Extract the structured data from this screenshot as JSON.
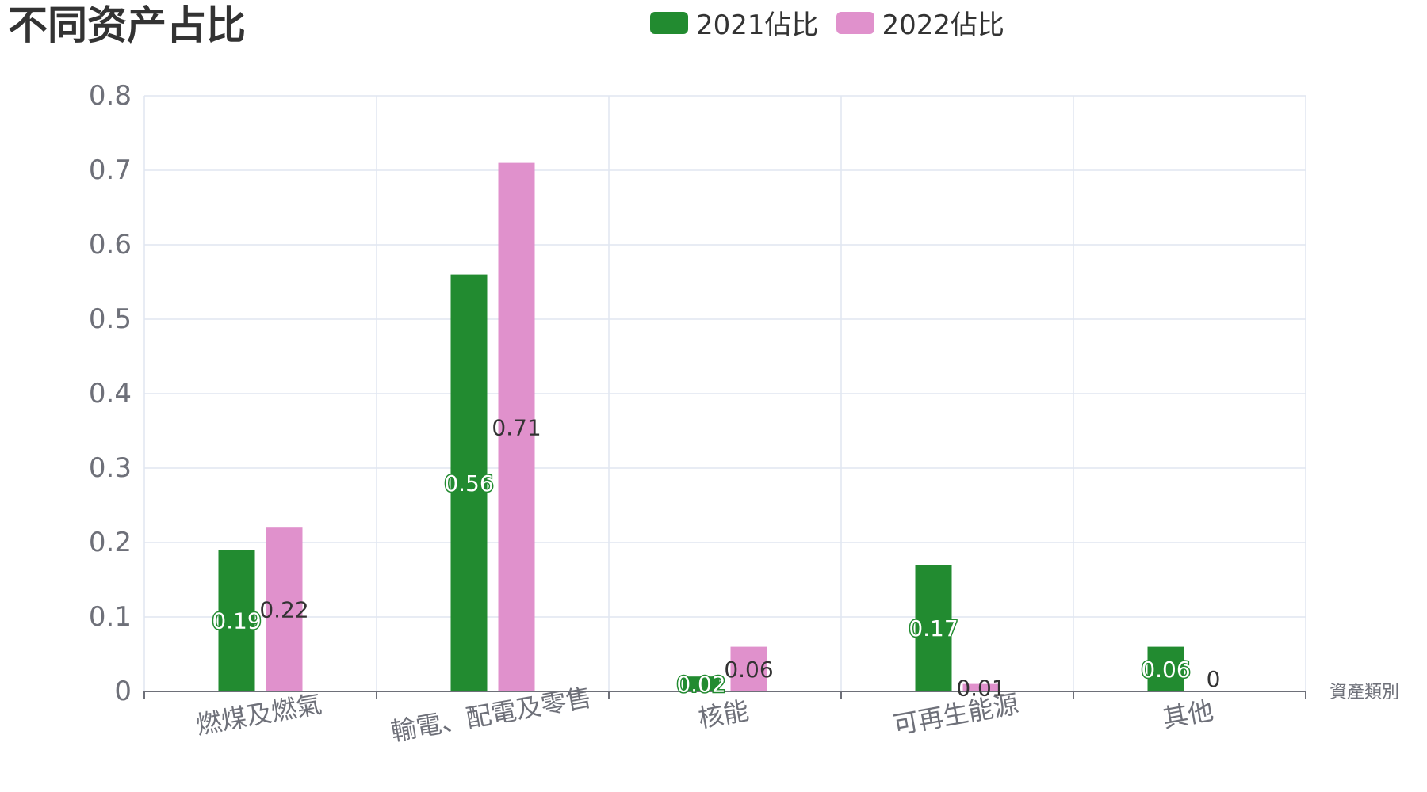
{
  "chart_data": {
    "type": "bar",
    "title": "不同资产占比",
    "xlabel": "資產類別",
    "ylabel": "",
    "ylim": [
      0,
      0.8
    ],
    "yticks": [
      0,
      0.1,
      0.2,
      0.3,
      0.4,
      0.5,
      0.6,
      0.7,
      0.8
    ],
    "categories": [
      "燃煤及燃氣",
      "輸電、配電及零售",
      "核能",
      "可再生能源",
      "其他"
    ],
    "series": [
      {
        "name": "2021佔比",
        "values": [
          0.19,
          0.56,
          0.02,
          0.17,
          0.06
        ],
        "color": "#228b30",
        "label_color": "#ffffff"
      },
      {
        "name": "2022佔比",
        "values": [
          0.22,
          0.71,
          0.06,
          0.01,
          0
        ],
        "color": "#e091cc",
        "label_color": "#333333"
      }
    ],
    "grid": true,
    "legend_position": "top"
  }
}
